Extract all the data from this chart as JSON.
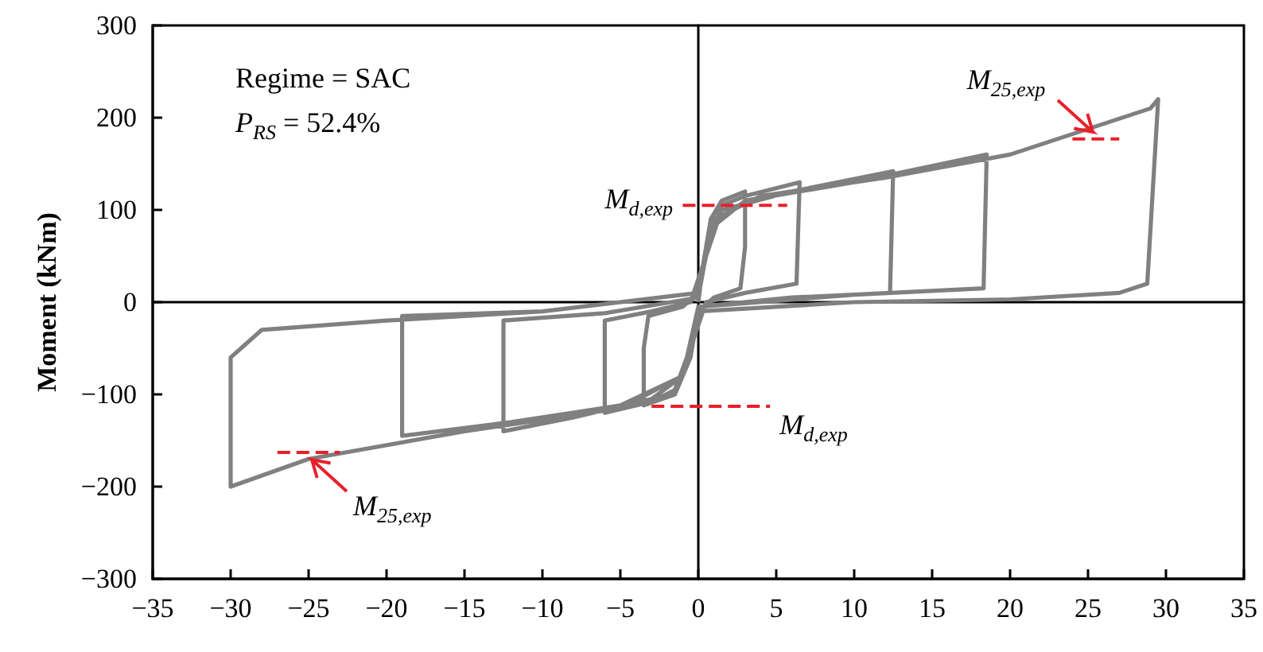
{
  "chart_data": {
    "type": "line",
    "ylabel": "Moment (kNm)",
    "annotations": [
      "Regime = SAC",
      "P$_{RS}$ = 52.4%",
      {
        "text": "M$_{d,exp}$",
        "x": -1,
        "y": 105
      },
      {
        "text": "M$_{d,exp}$",
        "x": 4.6,
        "y": -113
      },
      {
        "text": "M$_{25,exp}$",
        "x": 25.5,
        "y": 177
      },
      {
        "text": "M$_{25,exp}$",
        "x": -25,
        "y": -163
      }
    ],
    "xlim": [
      -35,
      35
    ],
    "xticks": [
      -35,
      -30,
      -25,
      -20,
      -15,
      -10,
      -5,
      0,
      5,
      10,
      15,
      20,
      25,
      30,
      35
    ],
    "ylim": [
      -300,
      300
    ],
    "yticks": [
      -300,
      -200,
      -100,
      0,
      100,
      200,
      300
    ],
    "line_style": "solid",
    "series": [
      {
        "color": "#808080",
        "x": [
          0,
          0.3,
          0.8,
          1.5,
          3,
          3,
          2.7,
          1,
          0,
          -0.5,
          -1.5,
          -3.5,
          -3.5,
          -3.2,
          -1,
          0,
          0.5,
          1.5,
          3,
          6.5,
          6.3,
          3,
          0.5,
          -0.3,
          -1.5,
          -3,
          -6,
          -6,
          -3,
          -0.5,
          0.3,
          1.5,
          6,
          12.5,
          12.3,
          6,
          0,
          -1,
          -3,
          -8,
          -12.5,
          -12.5,
          -6,
          0,
          0.8,
          3,
          10,
          18.5,
          18.3,
          10,
          0,
          -1,
          -5,
          -12,
          -19,
          -19,
          -10,
          0,
          1,
          4,
          12,
          20,
          29,
          29.5,
          28.8,
          27,
          20,
          10,
          0,
          -1,
          -5,
          -15,
          -25,
          -30,
          -30,
          -28,
          -20,
          -10,
          0,
          0.5
        ],
        "values": [
          0,
          40,
          90,
          110,
          120,
          60,
          15,
          5,
          -10,
          -60,
          -100,
          -112,
          -50,
          -15,
          -5,
          10,
          60,
          105,
          115,
          130,
          20,
          10,
          0,
          -40,
          -95,
          -108,
          -120,
          -20,
          -10,
          0,
          40,
          100,
          120,
          142,
          10,
          5,
          -5,
          -80,
          -105,
          -125,
          -140,
          -20,
          -12,
          5,
          80,
          110,
          130,
          160,
          15,
          8,
          -5,
          -80,
          -112,
          -130,
          -145,
          -15,
          -10,
          10,
          90,
          115,
          135,
          160,
          210,
          220,
          20,
          10,
          3,
          0,
          -10,
          -80,
          -115,
          -140,
          -170,
          -200,
          -60,
          -30,
          -20,
          -10,
          10,
          50
        ]
      },
      {
        "color": "#e8202a",
        "line_style": "dashed",
        "x": [
          -1,
          5.7
        ],
        "values": [
          105,
          105
        ]
      },
      {
        "color": "#e8202a",
        "line_style": "dashed",
        "x": [
          -3,
          4.6
        ],
        "values": [
          -113,
          -113
        ]
      },
      {
        "color": "#e8202a",
        "line_style": "dashed",
        "x": [
          24,
          27
        ],
        "values": [
          177,
          177
        ]
      },
      {
        "color": "#e8202a",
        "line_style": "dashed",
        "x": [
          -27,
          -23
        ],
        "values": [
          -163,
          -163
        ]
      }
    ]
  }
}
